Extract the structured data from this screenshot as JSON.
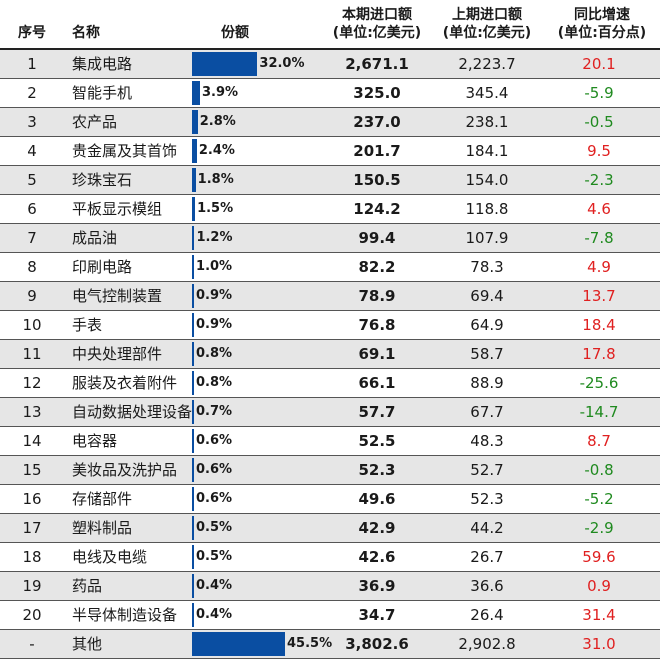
{
  "colors": {
    "bar": "#0a4ea2",
    "positive": "#e02020",
    "negative": "#1f8a1f",
    "shade": "#e6e6e6"
  },
  "headers": {
    "rank": "序号",
    "name": "名称",
    "share": "份额",
    "current_l1": "本期进口额",
    "current_l2": "(单位:亿美元)",
    "previous_l1": "上期进口额",
    "previous_l2": "(单位:亿美元)",
    "change_l1": "同比增速",
    "change_l2": "(单位:百分点)"
  },
  "chart_data": {
    "type": "table",
    "rows": [
      {
        "rank": "1",
        "name": "集成电路",
        "share": 32.0,
        "share_label": "32.0%",
        "current": "2,671.1",
        "previous": "2,223.7",
        "change": "20.1"
      },
      {
        "rank": "2",
        "name": "智能手机",
        "share": 3.9,
        "share_label": "3.9%",
        "current": "325.0",
        "previous": "345.4",
        "change": "-5.9"
      },
      {
        "rank": "3",
        "name": "农产品",
        "share": 2.8,
        "share_label": "2.8%",
        "current": "237.0",
        "previous": "238.1",
        "change": "-0.5"
      },
      {
        "rank": "4",
        "name": "贵金属及其首饰",
        "share": 2.4,
        "share_label": "2.4%",
        "current": "201.7",
        "previous": "184.1",
        "change": "9.5"
      },
      {
        "rank": "5",
        "name": "珍珠宝石",
        "share": 1.8,
        "share_label": "1.8%",
        "current": "150.5",
        "previous": "154.0",
        "change": "-2.3"
      },
      {
        "rank": "6",
        "name": "平板显示模组",
        "share": 1.5,
        "share_label": "1.5%",
        "current": "124.2",
        "previous": "118.8",
        "change": "4.6"
      },
      {
        "rank": "7",
        "name": "成品油",
        "share": 1.2,
        "share_label": "1.2%",
        "current": "99.4",
        "previous": "107.9",
        "change": "-7.8"
      },
      {
        "rank": "8",
        "name": "印刷电路",
        "share": 1.0,
        "share_label": "1.0%",
        "current": "82.2",
        "previous": "78.3",
        "change": "4.9"
      },
      {
        "rank": "9",
        "name": "电气控制装置",
        "share": 0.9,
        "share_label": "0.9%",
        "current": "78.9",
        "previous": "69.4",
        "change": "13.7"
      },
      {
        "rank": "10",
        "name": "手表",
        "share": 0.9,
        "share_label": "0.9%",
        "current": "76.8",
        "previous": "64.9",
        "change": "18.4"
      },
      {
        "rank": "11",
        "name": "中央处理部件",
        "share": 0.8,
        "share_label": "0.8%",
        "current": "69.1",
        "previous": "58.7",
        "change": "17.8"
      },
      {
        "rank": "12",
        "name": "服装及衣着附件",
        "share": 0.8,
        "share_label": "0.8%",
        "current": "66.1",
        "previous": "88.9",
        "change": "-25.6"
      },
      {
        "rank": "13",
        "name": "自动数据处理设备",
        "share": 0.7,
        "share_label": "0.7%",
        "current": "57.7",
        "previous": "67.7",
        "change": "-14.7"
      },
      {
        "rank": "14",
        "name": "电容器",
        "share": 0.6,
        "share_label": "0.6%",
        "current": "52.5",
        "previous": "48.3",
        "change": "8.7"
      },
      {
        "rank": "15",
        "name": "美妆品及洗护品",
        "share": 0.6,
        "share_label": "0.6%",
        "current": "52.3",
        "previous": "52.7",
        "change": "-0.8"
      },
      {
        "rank": "16",
        "name": "存储部件",
        "share": 0.6,
        "share_label": "0.6%",
        "current": "49.6",
        "previous": "52.3",
        "change": "-5.2"
      },
      {
        "rank": "17",
        "name": "塑料制品",
        "share": 0.5,
        "share_label": "0.5%",
        "current": "42.9",
        "previous": "44.2",
        "change": "-2.9"
      },
      {
        "rank": "18",
        "name": "电线及电缆",
        "share": 0.5,
        "share_label": "0.5%",
        "current": "42.6",
        "previous": "26.7",
        "change": "59.6"
      },
      {
        "rank": "19",
        "name": "药品",
        "share": 0.4,
        "share_label": "0.4%",
        "current": "36.9",
        "previous": "36.6",
        "change": "0.9"
      },
      {
        "rank": "20",
        "name": "半导体制造设备",
        "share": 0.4,
        "share_label": "0.4%",
        "current": "34.7",
        "previous": "26.4",
        "change": "31.4"
      },
      {
        "rank": "-",
        "name": "其他",
        "share": 45.5,
        "share_label": "45.5%",
        "current": "3,802.6",
        "previous": "2,902.8",
        "change": "31.0"
      }
    ]
  }
}
